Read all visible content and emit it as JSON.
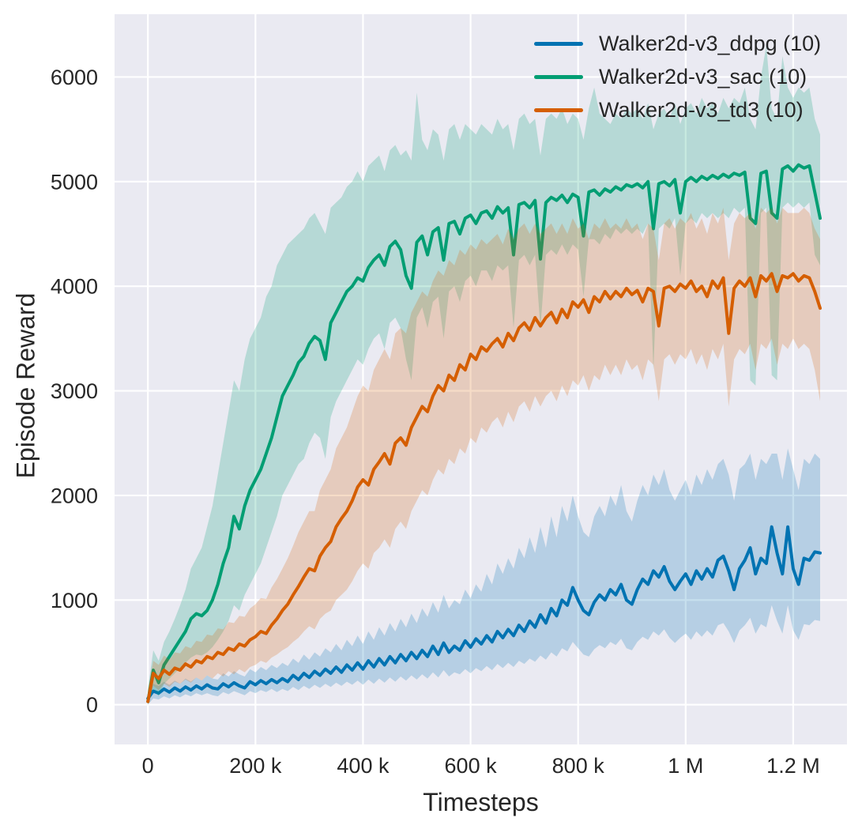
{
  "chart_data": {
    "type": "line",
    "title": "",
    "xlabel": "Timesteps",
    "ylabel": "Episode Reward",
    "grid": true,
    "legend_position": "upper right",
    "plot_background": "#eaeaf2",
    "grid_color": "#ffffff",
    "text_color": "#262626",
    "band_opacity": 0.22,
    "xlim": [
      -62000,
      1300000
    ],
    "ylim": [
      -380,
      6600
    ],
    "x_tick_values": [
      0,
      200000,
      400000,
      600000,
      800000,
      1000000,
      1200000
    ],
    "x_tick_labels": [
      "0",
      "200 k",
      "400 k",
      "600 k",
      "800 k",
      "1 M",
      "1.2 M"
    ],
    "y_tick_values": [
      0,
      1000,
      2000,
      3000,
      4000,
      5000,
      6000
    ],
    "y_tick_labels": [
      "0",
      "1000",
      "2000",
      "3000",
      "4000",
      "5000",
      "6000"
    ],
    "x_start": 0,
    "x_step": 10000,
    "n_points": 126,
    "series": [
      {
        "name": "Walker2d-v3_ddpg (10)",
        "color": "#0173b2",
        "mean": [
          60,
          130,
          110,
          150,
          120,
          160,
          130,
          170,
          140,
          180,
          150,
          190,
          160,
          150,
          200,
          170,
          210,
          180,
          160,
          220,
          190,
          230,
          200,
          240,
          210,
          250,
          220,
          280,
          240,
          300,
          260,
          320,
          280,
          340,
          300,
          360,
          310,
          380,
          330,
          400,
          340,
          420,
          360,
          440,
          380,
          460,
          400,
          480,
          420,
          500,
          440,
          520,
          460,
          560,
          480,
          590,
          500,
          560,
          520,
          610,
          550,
          630,
          580,
          660,
          600,
          700,
          640,
          720,
          660,
          760,
          700,
          800,
          740,
          860,
          780,
          920,
          850,
          1000,
          950,
          1120,
          1000,
          900,
          860,
          980,
          1050,
          1000,
          1100,
          1050,
          1150,
          1000,
          960,
          1100,
          1200,
          1150,
          1280,
          1220,
          1320,
          1180,
          1100,
          1180,
          1250,
          1150,
          1280,
          1200,
          1300,
          1220,
          1380,
          1420,
          1280,
          1100,
          1300,
          1380,
          1500,
          1250,
          1400,
          1350,
          1700,
          1450,
          1250,
          1700,
          1300,
          1150,
          1400,
          1380,
          1460,
          1450
        ],
        "lo": [
          0,
          60,
          50,
          80,
          60,
          90,
          70,
          100,
          80,
          110,
          90,
          110,
          90,
          80,
          120,
          100,
          130,
          110,
          90,
          130,
          110,
          140,
          120,
          150,
          120,
          150,
          130,
          170,
          140,
          180,
          150,
          190,
          160,
          200,
          170,
          210,
          180,
          220,
          190,
          230,
          190,
          240,
          200,
          250,
          210,
          260,
          220,
          270,
          230,
          280,
          240,
          290,
          250,
          310,
          260,
          330,
          270,
          310,
          290,
          340,
          300,
          350,
          320,
          370,
          330,
          390,
          350,
          400,
          360,
          420,
          390,
          440,
          410,
          470,
          430,
          500,
          460,
          540,
          510,
          600,
          540,
          480,
          460,
          530,
          570,
          540,
          600,
          570,
          630,
          540,
          520,
          600,
          650,
          620,
          700,
          660,
          720,
          640,
          590,
          640,
          680,
          620,
          700,
          650,
          710,
          660,
          760,
          780,
          700,
          590,
          710,
          760,
          830,
          680,
          770,
          740,
          950,
          800,
          680,
          950,
          710,
          620,
          770,
          760,
          810,
          800
        ],
        "hi": [
          130,
          200,
          180,
          220,
          190,
          230,
          200,
          250,
          220,
          260,
          230,
          280,
          250,
          240,
          300,
          270,
          320,
          290,
          270,
          340,
          310,
          360,
          330,
          380,
          350,
          400,
          370,
          440,
          400,
          480,
          430,
          500,
          460,
          540,
          500,
          580,
          520,
          620,
          560,
          660,
          580,
          700,
          620,
          740,
          660,
          780,
          700,
          820,
          740,
          870,
          780,
          920,
          840,
          980,
          880,
          1050,
          920,
          1000,
          960,
          1100,
          1020,
          1150,
          1080,
          1250,
          1150,
          1350,
          1250,
          1400,
          1300,
          1500,
          1400,
          1600,
          1450,
          1700,
          1500,
          1800,
          1600,
          1900,
          1750,
          2000,
          1800,
          1650,
          1600,
          1800,
          1900,
          1800,
          2000,
          1900,
          2100,
          1850,
          1750,
          1950,
          2100,
          2000,
          2200,
          2100,
          2250,
          2050,
          1950,
          2050,
          2150,
          2000,
          2200,
          2100,
          2250,
          2150,
          2300,
          2350,
          2200,
          1950,
          2250,
          2300,
          2400,
          2150,
          2350,
          2300,
          2400,
          2400,
          2150,
          2450,
          2250,
          2050,
          2350,
          2300,
          2400,
          2350
        ]
      },
      {
        "name": "Walker2d-v3_sac (10)",
        "color": "#029e73",
        "mean": [
          30,
          330,
          210,
          380,
          460,
          540,
          620,
          700,
          820,
          870,
          850,
          900,
          1000,
          1150,
          1350,
          1500,
          1800,
          1680,
          1900,
          2050,
          2150,
          2250,
          2400,
          2550,
          2750,
          2950,
          3050,
          3150,
          3270,
          3330,
          3450,
          3520,
          3480,
          3300,
          3650,
          3750,
          3850,
          3950,
          4000,
          4080,
          4050,
          4180,
          4250,
          4300,
          4200,
          4380,
          4430,
          4350,
          4100,
          3980,
          4420,
          4480,
          4300,
          4520,
          4560,
          4250,
          4600,
          4620,
          4500,
          4650,
          4680,
          4600,
          4700,
          4720,
          4650,
          4760,
          4700,
          4750,
          4300,
          4780,
          4800,
          4750,
          4820,
          4260,
          4800,
          4850,
          4820,
          4870,
          4800,
          4880,
          4850,
          4480,
          4900,
          4920,
          4870,
          4930,
          4900,
          4950,
          4920,
          4970,
          4950,
          4980,
          4940,
          5000,
          4550,
          4980,
          5000,
          4960,
          5020,
          4700,
          5000,
          5040,
          5000,
          5050,
          5020,
          5060,
          5030,
          5070,
          5040,
          5080,
          5060,
          5090,
          4650,
          4600,
          5080,
          5100,
          4700,
          4650,
          5120,
          5150,
          5100,
          5160,
          5130,
          5150,
          4900,
          4650
        ],
        "lo": [
          0,
          150,
          80,
          200,
          250,
          300,
          350,
          400,
          450,
          480,
          470,
          500,
          550,
          620,
          700,
          800,
          950,
          900,
          1050,
          1150,
          1250,
          1350,
          1500,
          1650,
          1800,
          2000,
          2100,
          2200,
          2300,
          2350,
          2500,
          2600,
          2550,
          2350,
          2750,
          2900,
          3000,
          3100,
          3200,
          3300,
          3250,
          3400,
          3500,
          3550,
          3400,
          3650,
          3700,
          3600,
          3300,
          3100,
          3700,
          3800,
          3600,
          3850,
          3900,
          3500,
          3950,
          4000,
          3850,
          4050,
          4100,
          4000,
          4150,
          4150,
          4050,
          4200,
          4150,
          4200,
          3600,
          4250,
          4300,
          4200,
          4300,
          3600,
          4300,
          4350,
          4300,
          4400,
          4300,
          4400,
          4350,
          3900,
          4450,
          4450,
          4400,
          4500,
          4450,
          4550,
          4500,
          4550,
          4500,
          4550,
          4500,
          4600,
          3200,
          4550,
          4600,
          4550,
          4650,
          4100,
          4600,
          4650,
          4600,
          4700,
          4650,
          4700,
          4650,
          4700,
          4650,
          4750,
          4700,
          4750,
          3100,
          3050,
          4700,
          4750,
          3150,
          3100,
          4750,
          4800,
          4750,
          4800,
          4750,
          4800,
          4300,
          4200
        ],
        "hi": [
          150,
          520,
          420,
          600,
          700,
          820,
          950,
          1100,
          1300,
          1400,
          1500,
          1700,
          1900,
          2200,
          2500,
          2800,
          3100,
          3000,
          3300,
          3500,
          3600,
          3700,
          3900,
          4000,
          4200,
          4300,
          4400,
          4450,
          4500,
          4550,
          4650,
          4700,
          4600,
          4500,
          4750,
          4800,
          4850,
          4950,
          5000,
          5100,
          5000,
          5150,
          5200,
          5250,
          5100,
          5300,
          5350,
          5250,
          5300,
          5200,
          5850,
          5400,
          5300,
          5500,
          5450,
          5200,
          5500,
          5550,
          5400,
          5550,
          5500,
          5450,
          5550,
          5500,
          5450,
          5600,
          5500,
          5550,
          5300,
          5600,
          5650,
          5550,
          5600,
          5250,
          5600,
          5650,
          5600,
          5700,
          5550,
          5650,
          5600,
          5400,
          5700,
          5900,
          5650,
          5600,
          5550,
          5650,
          5600,
          5700,
          5650,
          5700,
          5600,
          5750,
          5500,
          5650,
          5700,
          5600,
          5750,
          5550,
          5700,
          5750,
          5650,
          5800,
          5700,
          5750,
          5650,
          5800,
          5700,
          5800,
          5750,
          5900,
          5600,
          5500,
          6000,
          6300,
          5700,
          5600,
          6200,
          5900,
          5800,
          5900,
          5850,
          5900,
          5600,
          5450
        ]
      },
      {
        "name": "Walker2d-v3_td3 (10)",
        "color": "#d55e00",
        "mean": [
          30,
          300,
          250,
          330,
          290,
          350,
          330,
          390,
          360,
          420,
          400,
          460,
          440,
          500,
          480,
          540,
          520,
          580,
          560,
          620,
          650,
          700,
          680,
          760,
          820,
          900,
          960,
          1050,
          1130,
          1220,
          1300,
          1280,
          1420,
          1500,
          1560,
          1700,
          1780,
          1850,
          1950,
          2080,
          2150,
          2100,
          2250,
          2320,
          2400,
          2300,
          2500,
          2550,
          2480,
          2650,
          2750,
          2850,
          2800,
          2950,
          3050,
          3000,
          3150,
          3100,
          3250,
          3200,
          3350,
          3300,
          3420,
          3380,
          3450,
          3500,
          3420,
          3550,
          3480,
          3600,
          3650,
          3580,
          3700,
          3620,
          3700,
          3750,
          3650,
          3780,
          3700,
          3850,
          3800,
          3870,
          3750,
          3900,
          3850,
          3950,
          3880,
          3950,
          3900,
          3980,
          3920,
          3960,
          3850,
          3980,
          3950,
          3620,
          3980,
          4000,
          3950,
          4020,
          3980,
          4050,
          3950,
          4000,
          3900,
          4050,
          3980,
          4080,
          3550,
          3980,
          4050,
          4000,
          4080,
          3900,
          4100,
          4050,
          4120,
          3950,
          4100,
          4080,
          4120,
          4050,
          4100,
          4080,
          3950,
          3790
        ],
        "lo": [
          0,
          180,
          140,
          200,
          170,
          220,
          200,
          240,
          210,
          260,
          230,
          280,
          250,
          300,
          270,
          320,
          290,
          340,
          310,
          360,
          380,
          420,
          400,
          450,
          480,
          520,
          550,
          600,
          640,
          700,
          750,
          720,
          820,
          870,
          900,
          1000,
          1050,
          1100,
          1180,
          1280,
          1350,
          1300,
          1450,
          1500,
          1580,
          1500,
          1680,
          1750,
          1680,
          1850,
          1950,
          2050,
          2000,
          2150,
          2250,
          2200,
          2350,
          2300,
          2450,
          2400,
          2550,
          2500,
          2650,
          2600,
          2700,
          2750,
          2650,
          2800,
          2700,
          2850,
          2900,
          2800,
          2950,
          2850,
          2950,
          3000,
          2900,
          3050,
          2950,
          3100,
          3050,
          3150,
          3000,
          3150,
          3100,
          3250,
          3150,
          3250,
          3150,
          3300,
          3200,
          3250,
          3100,
          3300,
          3250,
          2900,
          3300,
          3350,
          3250,
          3350,
          3300,
          3400,
          3250,
          3350,
          3200,
          3400,
          3300,
          3450,
          2850,
          3300,
          3400,
          3350,
          3450,
          3200,
          3450,
          3400,
          3500,
          3250,
          3450,
          3400,
          3500,
          3400,
          3450,
          3400,
          3200,
          2900
        ],
        "hi": [
          140,
          420,
          380,
          470,
          430,
          500,
          490,
          560,
          540,
          610,
          600,
          670,
          660,
          730,
          720,
          790,
          780,
          850,
          840,
          920,
          960,
          1020,
          1010,
          1120,
          1200,
          1300,
          1400,
          1520,
          1650,
          1750,
          1850,
          1850,
          2050,
          2150,
          2250,
          2450,
          2550,
          2650,
          2800,
          2950,
          3050,
          3000,
          3200,
          3300,
          3400,
          3300,
          3550,
          3600,
          3550,
          3750,
          3850,
          3950,
          3900,
          4050,
          4150,
          4100,
          4250,
          4200,
          4350,
          4300,
          4400,
          4350,
          4450,
          4400,
          4450,
          4500,
          4400,
          4550,
          4450,
          4550,
          4600,
          4500,
          4600,
          4500,
          4550,
          4600,
          4500,
          4600,
          4500,
          4650,
          4550,
          4600,
          4450,
          4600,
          4550,
          4650,
          4550,
          4600,
          4550,
          4650,
          4550,
          4600,
          4450,
          4600,
          4550,
          4250,
          4600,
          4650,
          4550,
          4650,
          4600,
          4700,
          4550,
          4650,
          4500,
          4700,
          4600,
          4750,
          4250,
          4600,
          4700,
          4650,
          4700,
          4550,
          4750,
          4700,
          4750,
          4600,
          4750,
          4700,
          4700,
          4700,
          4750,
          4700,
          4550,
          4450
        ]
      }
    ]
  }
}
